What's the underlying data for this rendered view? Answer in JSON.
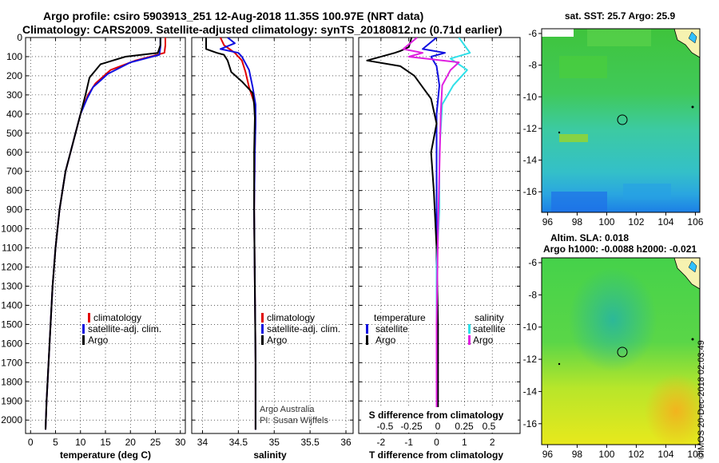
{
  "header": {
    "line1": "Argo profile: csiro 5903913_251 12-Aug-2018 11.35S 100.97E (NRT data)",
    "line2": "Climatology: CARS2009. Satellite-adjusted climatology: synTS_20180812.nc (0.71d earlier)"
  },
  "stamp": "©IMOS 20-Dec-2018 02:03:49",
  "colors": {
    "climatology": "#e00000",
    "satellite": "#1010e0",
    "argo": "#000000",
    "sal_satellite": "#30e0e8",
    "sal_argo": "#e020e0"
  },
  "chart_data": [
    {
      "type": "line",
      "name": "temperature-profile",
      "xlabel": "temperature (deg C)",
      "ylabel": "",
      "xlim": [
        -1,
        31
      ],
      "ylim": [
        0,
        2070
      ],
      "y_inverted": true,
      "xticks": [
        0,
        5,
        10,
        15,
        20,
        25,
        30
      ],
      "yticks": [
        0,
        100,
        200,
        300,
        400,
        500,
        600,
        700,
        800,
        900,
        1000,
        1100,
        1200,
        1300,
        1400,
        1500,
        1600,
        1700,
        1800,
        1900,
        2000
      ],
      "legend": {
        "position": "lower-right",
        "entries": [
          "climatology",
          "satellite-adj. clim.",
          "Argo"
        ]
      },
      "series": [
        {
          "name": "climatology",
          "color": "#e00000",
          "points": [
            [
              27,
              0
            ],
            [
              27,
              40
            ],
            [
              26.8,
              80
            ],
            [
              21,
              120
            ],
            [
              16,
              170
            ],
            [
              13,
              240
            ],
            [
              11.5,
              300
            ],
            [
              10,
              400
            ],
            [
              8.5,
              550
            ],
            [
              7,
              700
            ],
            [
              5.8,
              900
            ],
            [
              5,
              1100
            ],
            [
              4.4,
              1300
            ],
            [
              4,
              1500
            ],
            [
              3.6,
              1700
            ],
            [
              3.2,
              1900
            ],
            [
              3,
              2050
            ]
          ]
        },
        {
          "name": "satellite-adj. clim.",
          "color": "#1010e0",
          "points": [
            [
              26,
              0
            ],
            [
              26,
              50
            ],
            [
              25.8,
              90
            ],
            [
              20,
              130
            ],
            [
              15.5,
              190
            ],
            [
              12.5,
              260
            ],
            [
              11.3,
              320
            ],
            [
              10,
              400
            ],
            [
              8.5,
              550
            ],
            [
              7,
              700
            ],
            [
              5.8,
              900
            ],
            [
              5,
              1100
            ],
            [
              4.4,
              1300
            ],
            [
              4,
              1500
            ],
            [
              3.6,
              1700
            ],
            [
              3.2,
              1900
            ],
            [
              3,
              2050
            ]
          ]
        },
        {
          "name": "Argo",
          "color": "#000000",
          "points": [
            [
              26,
              0
            ],
            [
              26,
              40
            ],
            [
              25.5,
              80
            ],
            [
              19,
              100
            ],
            [
              14,
              140
            ],
            [
              11.8,
              210
            ],
            [
              11,
              300
            ],
            [
              10,
              400
            ],
            [
              8.5,
              550
            ],
            [
              7,
              700
            ],
            [
              5.8,
              900
            ],
            [
              5,
              1100
            ],
            [
              4.4,
              1300
            ],
            [
              4,
              1500
            ],
            [
              3.6,
              1700
            ],
            [
              3.2,
              1900
            ],
            [
              3,
              2050
            ]
          ]
        }
      ]
    },
    {
      "type": "line",
      "name": "salinity-profile",
      "xlabel": "salinity",
      "ylabel": "",
      "xlim": [
        33.85,
        36.1
      ],
      "ylim": [
        0,
        2070
      ],
      "y_inverted": true,
      "xticks": [
        34,
        34.5,
        35,
        35.5,
        36
      ],
      "legend": {
        "position": "lower-right",
        "entries": [
          "climatology",
          "satellite-adj. clim.",
          "Argo"
        ]
      },
      "annotations": [
        "Argo Australia",
        "PI: Susan Wijffels"
      ],
      "series": [
        {
          "name": "climatology",
          "color": "#e00000",
          "points": [
            [
              34.25,
              0
            ],
            [
              34.3,
              40
            ],
            [
              34.45,
              80
            ],
            [
              34.55,
              120
            ],
            [
              34.6,
              180
            ],
            [
              34.65,
              260
            ],
            [
              34.72,
              340
            ],
            [
              34.74,
              420
            ],
            [
              34.73,
              600
            ],
            [
              34.72,
              900
            ],
            [
              34.73,
              1300
            ],
            [
              34.74,
              1700
            ],
            [
              34.74,
              2050
            ]
          ]
        },
        {
          "name": "satellite-adj. clim.",
          "color": "#1010e0",
          "points": [
            [
              34.35,
              0
            ],
            [
              34.45,
              30
            ],
            [
              34.25,
              60
            ],
            [
              34.5,
              80
            ],
            [
              34.55,
              100
            ],
            [
              34.65,
              170
            ],
            [
              34.7,
              260
            ],
            [
              34.74,
              350
            ],
            [
              34.74,
              450
            ],
            [
              34.73,
              600
            ],
            [
              34.72,
              900
            ],
            [
              34.73,
              1300
            ],
            [
              34.74,
              1700
            ],
            [
              34.74,
              2050
            ]
          ]
        },
        {
          "name": "Argo",
          "color": "#000000",
          "points": [
            [
              34.05,
              0
            ],
            [
              34.05,
              60
            ],
            [
              34.2,
              80
            ],
            [
              34.3,
              90
            ],
            [
              34.35,
              120
            ],
            [
              34.4,
              180
            ],
            [
              34.55,
              230
            ],
            [
              34.7,
              290
            ],
            [
              34.72,
              350
            ],
            [
              34.73,
              420
            ],
            [
              34.72,
              600
            ],
            [
              34.72,
              900
            ],
            [
              34.73,
              1300
            ],
            [
              34.74,
              1700
            ],
            [
              34.74,
              2050
            ]
          ]
        }
      ]
    },
    {
      "type": "line",
      "name": "difference-profile",
      "xlabel": "T difference from climatology",
      "x2label": "S difference from climatology",
      "ylabel": "",
      "xlim": [
        -2.8,
        3
      ],
      "ylim": [
        0,
        2070
      ],
      "y_inverted": true,
      "xticks": [
        -2,
        -1,
        0,
        1,
        2
      ],
      "x2ticks": [
        -0.5,
        -0.25,
        0,
        0.25,
        0.5
      ],
      "x2ticklabels": [
        "-0.5",
        "-0.25",
        "0",
        "0.25",
        "0.5"
      ],
      "legend": {
        "position": "lower",
        "entries": [
          "temperature",
          "satellite",
          "Argo",
          "salinity",
          "satellite",
          "Argo"
        ]
      },
      "series": [
        {
          "name": "temperature satellite",
          "color": "#1010e0",
          "points": [
            [
              0,
              0
            ],
            [
              -0.5,
              60
            ],
            [
              0.3,
              80
            ],
            [
              -0.2,
              100
            ],
            [
              0,
              150
            ],
            [
              0.1,
              250
            ],
            [
              0,
              400
            ],
            [
              0,
              2050
            ]
          ]
        },
        {
          "name": "temperature Argo",
          "color": "#000000",
          "points": [
            [
              -0.9,
              0
            ],
            [
              -1,
              50
            ],
            [
              -1.3,
              70
            ],
            [
              -1.5,
              80
            ],
            [
              -2.5,
              120
            ],
            [
              -1.3,
              150
            ],
            [
              -0.8,
              200
            ],
            [
              -0.5,
              260
            ],
            [
              -0.2,
              320
            ],
            [
              0,
              450
            ],
            [
              -0.2,
              600
            ],
            [
              -0.1,
              800
            ],
            [
              0,
              1100
            ],
            [
              0.05,
              1500
            ],
            [
              0.05,
              2050
            ]
          ]
        },
        {
          "name": "salinity satellite",
          "color": "#30e0e8",
          "points": [
            [
              0.8,
              0
            ],
            [
              1.2,
              80
            ],
            [
              0.5,
              110
            ],
            [
              1.1,
              170
            ],
            [
              0.6,
              250
            ],
            [
              0.2,
              350
            ],
            [
              0.1,
              600
            ],
            [
              0.1,
              900
            ],
            [
              0,
              1200
            ],
            [
              0,
              1500
            ],
            [
              0,
              2050
            ]
          ]
        },
        {
          "name": "salinity Argo",
          "color": "#e020e0",
          "points": [
            [
              -0.7,
              0
            ],
            [
              -1.2,
              60
            ],
            [
              -0.5,
              80
            ],
            [
              -1,
              100
            ],
            [
              0.8,
              130
            ],
            [
              0.5,
              170
            ],
            [
              0.2,
              250
            ],
            [
              0.15,
              400
            ],
            [
              0.1,
              700
            ],
            [
              0.05,
              1000
            ],
            [
              0,
              1500
            ],
            [
              0,
              2050
            ]
          ]
        }
      ]
    },
    {
      "type": "heatmap",
      "name": "sst-map",
      "title": "sat. SST: 25.7 Argo: 25.9",
      "xlim": [
        95.6,
        106.3
      ],
      "ylim": [
        -17.3,
        -5.7
      ],
      "xticks": [
        96,
        98,
        100,
        102,
        104,
        106
      ],
      "yticks": [
        -6,
        -8,
        -10,
        -12,
        -14,
        -16
      ],
      "marker": [
        100.97,
        -11.35
      ]
    },
    {
      "type": "heatmap",
      "name": "sla-map",
      "title": "Altim. SLA: 0.018",
      "subtitle": "Argo h1000: -0.0088 h2000: -0.021",
      "xlim": [
        95.6,
        106.3
      ],
      "ylim": [
        -17.3,
        -5.7
      ],
      "xticks": [
        96,
        98,
        100,
        102,
        104,
        106
      ],
      "yticks": [
        -6,
        -8,
        -10,
        -12,
        -14,
        -16
      ],
      "marker": [
        100.97,
        -11.35
      ]
    }
  ],
  "legends": {
    "clim": "climatology",
    "sat": "satellite-adj. clim.",
    "argo": "Argo",
    "temperature": "temperature",
    "salinity": "salinity",
    "satellite": "satellite",
    "argo_short": "Argo"
  },
  "annot": {
    "argo_australia": "Argo Australia",
    "pi": "PI: Susan Wijffels"
  }
}
